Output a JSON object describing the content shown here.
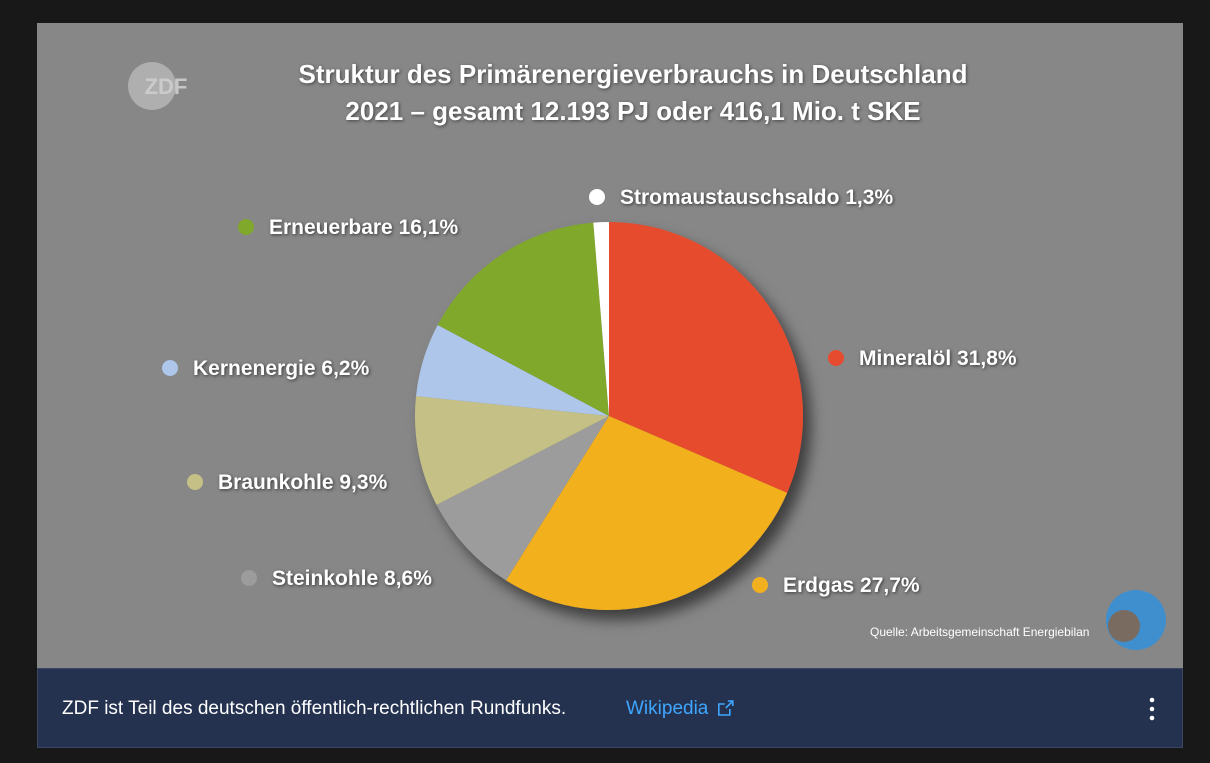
{
  "chart_data": {
    "type": "pie",
    "title": [
      "Struktur des Primärenergieverbrauchs in Deutschland",
      "2021 – gesamt 12.193 PJ oder 416,1 Mio. t SKE"
    ],
    "categories": [
      "Mineralöl",
      "Erdgas",
      "Steinkohle",
      "Braunkohle",
      "Kernenergie",
      "Erneuerbare",
      "Stromaustauschsaldo"
    ],
    "values": [
      31.8,
      27.7,
      8.6,
      9.3,
      6.2,
      16.1,
      1.3
    ],
    "value_labels": [
      "31,8%",
      "27,7%",
      "8,6%",
      "9,3%",
      "6,2%",
      "16,1%",
      "1,3%"
    ],
    "colors": [
      "#e64b2f",
      "#f2b01f",
      "#9c9c9c",
      "#c5c186",
      "#aec6ea",
      "#80a82b",
      "#ffffff"
    ],
    "source": "Quelle: Arbeitsgemeinschaft Energiebilan"
  },
  "logo": "ZDF",
  "info_bar": {
    "text": "ZDF ist Teil des deutschen öffentlich-rechtlichen Rundfunks.",
    "link": "Wikipedia"
  }
}
